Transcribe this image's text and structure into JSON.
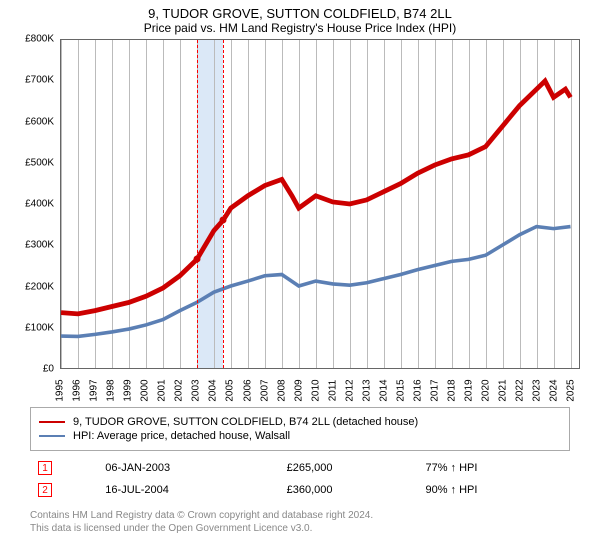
{
  "title": "9, TUDOR GROVE, SUTTON COLDFIELD, B74 2LL",
  "subtitle": "Price paid vs. HM Land Registry's House Price Index (HPI)",
  "chart": {
    "type": "line",
    "ylim": [
      0,
      800000
    ],
    "ytick_step": 100000,
    "y_ticks": [
      "£0",
      "£100K",
      "£200K",
      "£300K",
      "£400K",
      "£500K",
      "£600K",
      "£700K",
      "£800K"
    ],
    "x_years": [
      1995,
      1996,
      1997,
      1998,
      1999,
      2000,
      2001,
      2002,
      2003,
      2004,
      2005,
      2006,
      2007,
      2008,
      2009,
      2010,
      2011,
      2012,
      2013,
      2014,
      2015,
      2016,
      2017,
      2018,
      2019,
      2020,
      2021,
      2022,
      2023,
      2024,
      2025
    ],
    "x_min": 1995,
    "x_max": 2025.5,
    "background_color": "#ffffff",
    "grid_color": "#bbbbbb",
    "shade_range": [
      2003.02,
      2004.54
    ],
    "series": [
      {
        "name": "9, TUDOR GROVE, SUTTON COLDFIELD, B74 2LL (detached house)",
        "color": "#cc0000",
        "width": 1.6,
        "data": [
          [
            1995,
            135000
          ],
          [
            1996,
            132000
          ],
          [
            1997,
            140000
          ],
          [
            1998,
            150000
          ],
          [
            1999,
            160000
          ],
          [
            2000,
            175000
          ],
          [
            2001,
            195000
          ],
          [
            2002,
            225000
          ],
          [
            2003,
            265000
          ],
          [
            2004,
            335000
          ],
          [
            2004.54,
            360000
          ],
          [
            2005,
            390000
          ],
          [
            2006,
            420000
          ],
          [
            2007,
            445000
          ],
          [
            2008,
            460000
          ],
          [
            2008.6,
            420000
          ],
          [
            2009,
            390000
          ],
          [
            2010,
            420000
          ],
          [
            2011,
            405000
          ],
          [
            2012,
            400000
          ],
          [
            2013,
            410000
          ],
          [
            2014,
            430000
          ],
          [
            2015,
            450000
          ],
          [
            2016,
            475000
          ],
          [
            2017,
            495000
          ],
          [
            2018,
            510000
          ],
          [
            2019,
            520000
          ],
          [
            2020,
            540000
          ],
          [
            2021,
            590000
          ],
          [
            2022,
            640000
          ],
          [
            2023,
            680000
          ],
          [
            2023.5,
            700000
          ],
          [
            2024,
            660000
          ],
          [
            2024.7,
            680000
          ],
          [
            2025,
            660000
          ]
        ]
      },
      {
        "name": "HPI: Average price, detached house, Walsall",
        "color": "#5b7fb4",
        "width": 1.2,
        "data": [
          [
            1995,
            78000
          ],
          [
            1996,
            77000
          ],
          [
            1997,
            82000
          ],
          [
            1998,
            88000
          ],
          [
            1999,
            95000
          ],
          [
            2000,
            105000
          ],
          [
            2001,
            118000
          ],
          [
            2002,
            140000
          ],
          [
            2003,
            160000
          ],
          [
            2004,
            185000
          ],
          [
            2005,
            200000
          ],
          [
            2006,
            212000
          ],
          [
            2007,
            225000
          ],
          [
            2008,
            228000
          ],
          [
            2009,
            200000
          ],
          [
            2010,
            212000
          ],
          [
            2011,
            205000
          ],
          [
            2012,
            202000
          ],
          [
            2013,
            208000
          ],
          [
            2014,
            218000
          ],
          [
            2015,
            228000
          ],
          [
            2016,
            240000
          ],
          [
            2017,
            250000
          ],
          [
            2018,
            260000
          ],
          [
            2019,
            265000
          ],
          [
            2020,
            275000
          ],
          [
            2021,
            300000
          ],
          [
            2022,
            325000
          ],
          [
            2023,
            345000
          ],
          [
            2024,
            340000
          ],
          [
            2025,
            345000
          ]
        ]
      }
    ],
    "sale_markers": [
      {
        "n": "1",
        "year": 2003.02,
        "value": 265000
      },
      {
        "n": "2",
        "year": 2004.54,
        "value": 360000
      }
    ]
  },
  "legend": {
    "series1_label": "9, TUDOR GROVE, SUTTON COLDFIELD, B74 2LL (detached house)",
    "series2_label": "HPI: Average price, detached house, Walsall"
  },
  "sales": [
    {
      "n": "1",
      "date": "06-JAN-2003",
      "price": "£265,000",
      "vs_hpi": "77% ↑ HPI"
    },
    {
      "n": "2",
      "date": "16-JUL-2004",
      "price": "£360,000",
      "vs_hpi": "90% ↑ HPI"
    }
  ],
  "footer": {
    "line1": "Contains HM Land Registry data © Crown copyright and database right 2024.",
    "line2": "This data is licensed under the Open Government Licence v3.0."
  }
}
